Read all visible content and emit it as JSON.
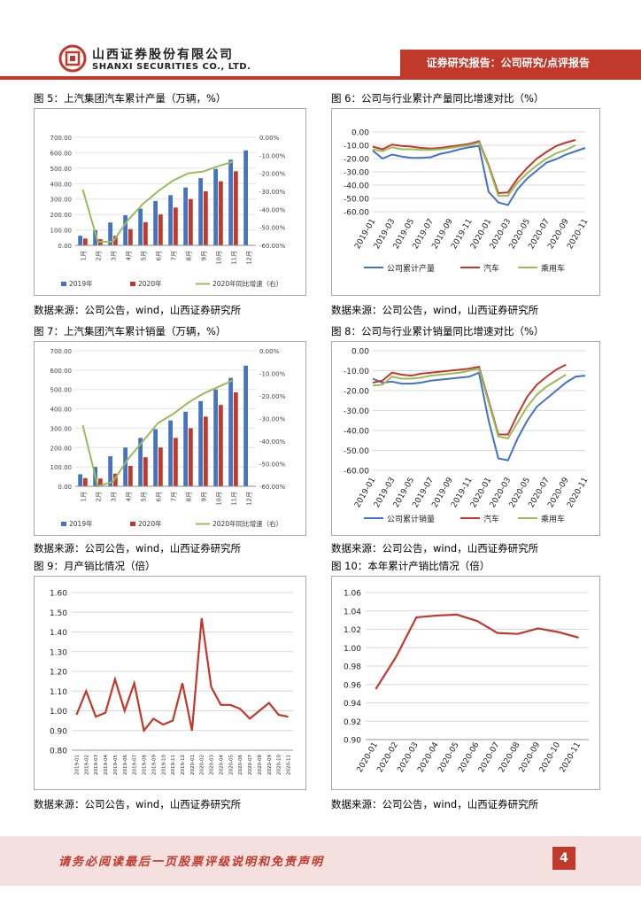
{
  "header": {
    "company_cn": "山西证券股份有限公司",
    "company_en": "SHANXI SECURITIES CO., LTD.",
    "tag": "证券研究报告：公司研究/点评报告"
  },
  "footer": {
    "disclaimer": "请务必阅读最后一页股票评级说明和免责声明",
    "page": "4"
  },
  "colors": {
    "brand": "#c0392b",
    "blue": "#4472c4",
    "red": "#c0392b",
    "green": "#9bbb59"
  },
  "figures": [
    {
      "title": "图 5：上汽集团汽车累计产量（万辆，%）",
      "source": "数据来源：公司公告，wind，山西证券研究所"
    },
    {
      "title": "图 6：公司与行业累计产量同比增速对比（%）",
      "source": "数据来源：公司公告，wind，山西证券研究所"
    },
    {
      "title": "图 7：上汽集团汽车累计销量（万辆，%）",
      "source": "数据来源：公司公告，wind，山西证券研究所"
    },
    {
      "title": "图 8：公司与行业累计销量同比增速对比（%）",
      "source": "数据来源：公司公告，wind，山西证券研究所"
    },
    {
      "title": "图 9：月产销比情况（倍）",
      "source": "数据来源：公司公告，wind，山西证券研究所"
    },
    {
      "title": "图 10：本年累计产销比情况（倍）",
      "source": "数据来源：公司公告，wind，山西证券研究所"
    }
  ],
  "chart_data": [
    {
      "type": "bar",
      "title": "上汽集团汽车累计产量（万辆，%）",
      "categories": [
        "1月",
        "2月",
        "3月",
        "4月",
        "5月",
        "6月",
        "7月",
        "8月",
        "9月",
        "10月",
        "11月",
        "12月"
      ],
      "series": [
        {
          "name": "2019年",
          "values": [
            62,
            98,
            148,
            195,
            238,
            287,
            325,
            375,
            435,
            495,
            555,
            615
          ]
        },
        {
          "name": "2020年",
          "values": [
            44,
            40,
            62,
            105,
            150,
            200,
            245,
            300,
            350,
            415,
            480,
            null
          ]
        },
        {
          "name": "2020年同比增速（右）",
          "values": [
            -29,
            -58,
            -58,
            -46,
            -37,
            -30,
            -24,
            -20,
            -19,
            -16,
            -13.5,
            null
          ]
        }
      ],
      "ylim": [
        0,
        700
      ],
      "y_ticks": [
        "0.00",
        "100.00",
        "200.00",
        "300.00",
        "400.00",
        "500.00",
        "600.00",
        "700.00"
      ],
      "y2lim": [
        -60,
        0
      ],
      "y2_ticks": [
        "0.00%",
        "-10.00%",
        "-20.00%",
        "-30.00%",
        "-40.00%",
        "-50.00%",
        "-60.00%"
      ],
      "legend": [
        "2019年",
        "2020年",
        "2020年同比增速（右）"
      ]
    },
    {
      "type": "line",
      "title": "公司与行业累计产量同比增速对比（%）",
      "categories": [
        "2019-01",
        "2019-02",
        "2019-03",
        "2019-04",
        "2019-05",
        "2019-06",
        "2019-07",
        "2019-08",
        "2019-09",
        "2019-10",
        "2019-11",
        "2019-12",
        "2020-01",
        "2020-02",
        "2020-03",
        "2020-04",
        "2020-05",
        "2020-06",
        "2020-07",
        "2020-08",
        "2020-09",
        "2020-10",
        "2020-11"
      ],
      "x_ticks": [
        "2019-01",
        "2019-03",
        "2019-05",
        "2019-07",
        "2019-09",
        "2019-11",
        "2020-01",
        "2020-03",
        "2020-05",
        "2020-07",
        "2020-09",
        "2020-11"
      ],
      "series": [
        {
          "name": "公司累计产量",
          "values": [
            -14,
            -20,
            -17,
            -18.5,
            -19.5,
            -19.5,
            -19,
            -16.5,
            -15,
            -13,
            -11.5,
            -10.5,
            -45,
            -53,
            -55,
            -43,
            -35,
            -29,
            -23,
            -20.5,
            -17,
            -14.5,
            -12
          ]
        },
        {
          "name": "汽车",
          "values": [
            -11,
            -13,
            -9.5,
            -10.5,
            -11,
            -12,
            -12.5,
            -12,
            -11,
            -10,
            -9,
            -7,
            -25,
            -46,
            -45.5,
            -35,
            -27,
            -20,
            -15,
            -10.5,
            -8,
            -6,
            null
          ]
        },
        {
          "name": "乘用车",
          "values": [
            -13,
            -14.5,
            -11.5,
            -13,
            -13,
            -13.5,
            -13.5,
            -13,
            -12,
            -11,
            -10,
            -8,
            -26,
            -48,
            -48,
            -38,
            -31,
            -25,
            -20,
            -16,
            -13.5,
            -10,
            null
          ]
        }
      ],
      "ylim": [
        -60,
        0
      ],
      "y_ticks": [
        "0.00",
        "-10.00",
        "-20.00",
        "-30.00",
        "-40.00",
        "-50.00",
        "-60.00"
      ],
      "legend": [
        "公司累计产量",
        "汽车",
        "乘用车"
      ]
    },
    {
      "type": "bar",
      "title": "上汽集团汽车累计销量（万辆，%）",
      "categories": [
        "1月",
        "2月",
        "3月",
        "4月",
        "5月",
        "6月",
        "7月",
        "8月",
        "9月",
        "10月",
        "11月",
        "12月"
      ],
      "series": [
        {
          "name": "2019年",
          "values": [
            62,
            100,
            155,
            200,
            250,
            295,
            340,
            385,
            440,
            500,
            560,
            623
          ]
        },
        {
          "name": "2020年",
          "values": [
            42,
            40,
            65,
            105,
            150,
            200,
            250,
            300,
            360,
            420,
            485,
            null
          ]
        },
        {
          "name": "2020年同比增速（右）",
          "values": [
            -33,
            -60,
            -58,
            -48,
            -40,
            -32,
            -28,
            -23,
            -19,
            -16,
            -13,
            null
          ]
        }
      ],
      "ylim": [
        0,
        700
      ],
      "y_ticks": [
        "0.00",
        "100.00",
        "200.00",
        "300.00",
        "400.00",
        "500.00",
        "600.00",
        "700.00"
      ],
      "y2lim": [
        -60,
        0
      ],
      "y2_ticks": [
        "0.00%",
        "-10.00%",
        "-20.00%",
        "-30.00%",
        "-40.00%",
        "-50.00%",
        "-60.00%"
      ],
      "legend": [
        "2019年",
        "2020年",
        "2020年同比增速（右）"
      ]
    },
    {
      "type": "line",
      "title": "公司与行业累计销量同比增速对比（%）",
      "categories": [
        "2019-01",
        "2019-02",
        "2019-03",
        "2019-04",
        "2019-05",
        "2019-06",
        "2019-07",
        "2019-08",
        "2019-09",
        "2019-10",
        "2019-11",
        "2019-12",
        "2020-01",
        "2020-02",
        "2020-03",
        "2020-04",
        "2020-05",
        "2020-06",
        "2020-07",
        "2020-08",
        "2020-09",
        "2020-10",
        "2020-11"
      ],
      "x_ticks": [
        "2019-01",
        "2019-03",
        "2019-05",
        "2019-07",
        "2019-09",
        "2019-11",
        "2020-01",
        "2020-03",
        "2020-05",
        "2020-07",
        "2020-09",
        "2020-11"
      ],
      "series": [
        {
          "name": "公司累计销量",
          "values": [
            -14,
            -16,
            -15.5,
            -16.5,
            -16.5,
            -16,
            -15,
            -14.5,
            -14,
            -13.5,
            -13,
            -11,
            -35,
            -54,
            -55,
            -44,
            -35,
            -28,
            -24,
            -20,
            -16,
            -13,
            -12.5
          ]
        },
        {
          "name": "汽车",
          "values": [
            -16,
            -15,
            -11,
            -12,
            -12.5,
            -11.5,
            -11,
            -10.5,
            -10,
            -9.5,
            -9,
            -8,
            -25,
            -42,
            -42,
            -32,
            -23,
            -17,
            -13,
            -9.5,
            -7,
            null,
            null
          ]
        },
        {
          "name": "乘用车",
          "values": [
            -17.5,
            -17,
            -13,
            -14,
            -14,
            -13.5,
            -12.5,
            -12,
            -11.5,
            -11,
            -10,
            -9,
            -26,
            -43,
            -44,
            -36,
            -28,
            -22,
            -18,
            -15,
            -12,
            null,
            null
          ]
        }
      ],
      "ylim": [
        -60,
        0
      ],
      "y_ticks": [
        "0.00",
        "-10.00",
        "-20.00",
        "-30.00",
        "-40.00",
        "-50.00",
        "-60.00"
      ],
      "legend": [
        "公司累计销量",
        "汽车",
        "乘用车"
      ]
    },
    {
      "type": "line",
      "title": "月产销比情况（倍）",
      "categories": [
        "2019-01",
        "2019-02",
        "2019-03",
        "2019-04",
        "2019-05",
        "2019-06",
        "2019-07",
        "2019-08",
        "2019-09",
        "2019-10",
        "2019-11",
        "2019-12",
        "2020-01",
        "2020-02",
        "2020-03",
        "2020-04",
        "2020-05",
        "2020-06",
        "2020-07",
        "2020-08",
        "2020-09",
        "2020-10",
        "2020-11"
      ],
      "series": [
        {
          "name": "月产销比",
          "values": [
            0.98,
            1.1,
            0.97,
            0.99,
            1.16,
            1.0,
            1.14,
            0.9,
            0.96,
            0.93,
            0.95,
            1.14,
            0.9,
            1.47,
            1.12,
            1.03,
            1.03,
            1.01,
            0.96,
            1.0,
            1.04,
            0.98,
            0.97
          ]
        }
      ],
      "ylim": [
        0.8,
        1.6
      ],
      "y_ticks": [
        "0.80",
        "0.90",
        "1.00",
        "1.10",
        "1.20",
        "1.30",
        "1.40",
        "1.50",
        "1.60"
      ]
    },
    {
      "type": "line",
      "title": "本年累计产销比情况（倍）",
      "categories": [
        "2020-01",
        "2020-02",
        "2020-03",
        "2020-04",
        "2020-05",
        "2020-06",
        "2020-07",
        "2020-08",
        "2020-09",
        "2020-10",
        "2020-11"
      ],
      "series": [
        {
          "name": "累计产销比",
          "values": [
            0.955,
            0.99,
            1.033,
            1.035,
            1.036,
            1.029,
            1.016,
            1.015,
            1.021,
            1.017,
            1.011
          ]
        }
      ],
      "ylim": [
        0.9,
        1.06
      ],
      "y_ticks": [
        "0.90",
        "0.92",
        "0.94",
        "0.96",
        "0.98",
        "1.00",
        "1.02",
        "1.04",
        "1.06"
      ]
    }
  ]
}
